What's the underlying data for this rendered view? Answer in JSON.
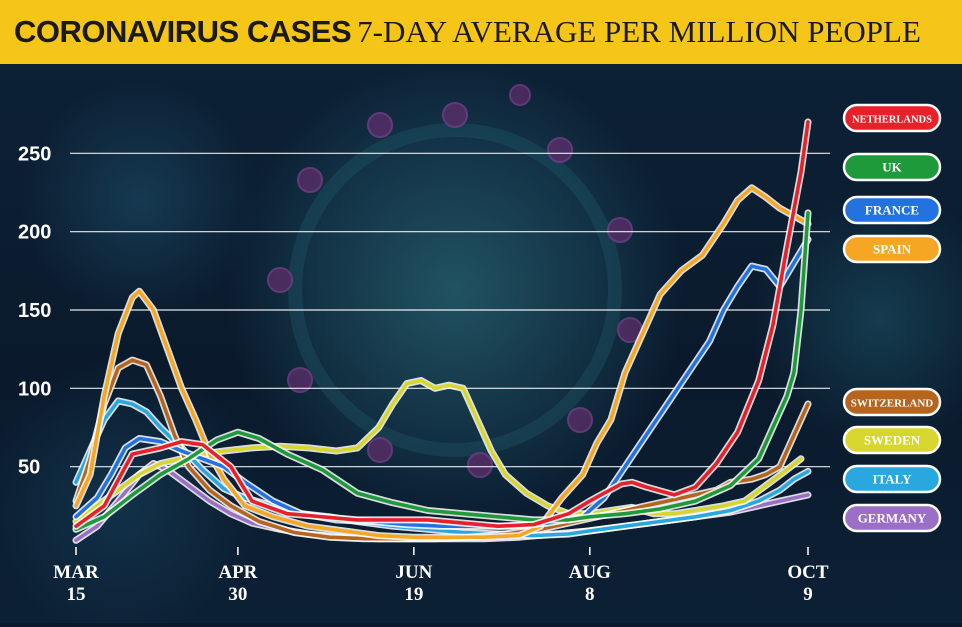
{
  "chart_data": {
    "type": "line",
    "title": "CORONAVIRUS CASES",
    "subtitle": "7-DAY AVERAGE PER MILLION PEOPLE",
    "ylim": [
      0,
      270
    ],
    "yticks": [
      50,
      100,
      150,
      200,
      250
    ],
    "xlim": [
      0,
      208
    ],
    "xticks": [
      {
        "x": 0,
        "line1": "MAR",
        "line2": "15"
      },
      {
        "x": 46,
        "line1": "APR",
        "line2": "30"
      },
      {
        "x": 96,
        "line1": "JUN",
        "line2": "19"
      },
      {
        "x": 146,
        "line1": "AUG",
        "line2": "8"
      },
      {
        "x": 208,
        "line1": "OCT",
        "line2": "9"
      }
    ],
    "x_unit": "days since Mar 15",
    "grid": true,
    "series": [
      {
        "name": "NETHERLANDS",
        "color": "#e8202a",
        "points": [
          [
            0,
            12
          ],
          [
            8,
            25
          ],
          [
            16,
            58
          ],
          [
            24,
            62
          ],
          [
            30,
            66
          ],
          [
            36,
            64
          ],
          [
            44,
            50
          ],
          [
            50,
            28
          ],
          [
            60,
            20
          ],
          [
            70,
            18
          ],
          [
            80,
            16
          ],
          [
            90,
            16
          ],
          [
            100,
            16
          ],
          [
            110,
            14
          ],
          [
            120,
            12
          ],
          [
            130,
            13
          ],
          [
            140,
            20
          ],
          [
            146,
            28
          ],
          [
            150,
            33
          ],
          [
            155,
            39
          ],
          [
            158,
            40
          ],
          [
            162,
            37
          ],
          [
            170,
            32
          ],
          [
            176,
            37
          ],
          [
            182,
            52
          ],
          [
            188,
            72
          ],
          [
            194,
            105
          ],
          [
            198,
            140
          ],
          [
            202,
            190
          ],
          [
            206,
            238
          ],
          [
            208,
            270
          ]
        ]
      },
      {
        "name": "UK",
        "color": "#1e9a3a",
        "points": [
          [
            0,
            10
          ],
          [
            8,
            18
          ],
          [
            16,
            32
          ],
          [
            24,
            45
          ],
          [
            32,
            55
          ],
          [
            40,
            67
          ],
          [
            46,
            72
          ],
          [
            52,
            68
          ],
          [
            60,
            58
          ],
          [
            70,
            48
          ],
          [
            80,
            33
          ],
          [
            90,
            27
          ],
          [
            100,
            22
          ],
          [
            110,
            20
          ],
          [
            120,
            18
          ],
          [
            130,
            16
          ],
          [
            140,
            16
          ],
          [
            146,
            18
          ],
          [
            156,
            20
          ],
          [
            166,
            23
          ],
          [
            176,
            28
          ],
          [
            186,
            38
          ],
          [
            194,
            55
          ],
          [
            198,
            75
          ],
          [
            202,
            95
          ],
          [
            204,
            110
          ],
          [
            206,
            150
          ],
          [
            208,
            212
          ]
        ]
      },
      {
        "name": "FRANCE",
        "color": "#2273e0",
        "points": [
          [
            0,
            18
          ],
          [
            6,
            30
          ],
          [
            10,
            45
          ],
          [
            14,
            62
          ],
          [
            18,
            68
          ],
          [
            24,
            66
          ],
          [
            30,
            60
          ],
          [
            36,
            55
          ],
          [
            42,
            50
          ],
          [
            48,
            40
          ],
          [
            56,
            28
          ],
          [
            64,
            20
          ],
          [
            74,
            16
          ],
          [
            84,
            15
          ],
          [
            94,
            13
          ],
          [
            104,
            12
          ],
          [
            114,
            12
          ],
          [
            124,
            12
          ],
          [
            134,
            14
          ],
          [
            144,
            18
          ],
          [
            150,
            30
          ],
          [
            156,
            50
          ],
          [
            162,
            70
          ],
          [
            168,
            90
          ],
          [
            174,
            110
          ],
          [
            180,
            130
          ],
          [
            184,
            150
          ],
          [
            188,
            165
          ],
          [
            192,
            178
          ],
          [
            196,
            176
          ],
          [
            200,
            165
          ],
          [
            204,
            180
          ],
          [
            208,
            195
          ]
        ]
      },
      {
        "name": "SPAIN",
        "color": "#f5a623",
        "points": [
          [
            0,
            25
          ],
          [
            4,
            45
          ],
          [
            8,
            95
          ],
          [
            12,
            135
          ],
          [
            16,
            158
          ],
          [
            18,
            162
          ],
          [
            22,
            150
          ],
          [
            26,
            125
          ],
          [
            30,
            100
          ],
          [
            34,
            80
          ],
          [
            38,
            58
          ],
          [
            42,
            42
          ],
          [
            48,
            25
          ],
          [
            56,
            18
          ],
          [
            66,
            12
          ],
          [
            76,
            9
          ],
          [
            86,
            6
          ],
          [
            96,
            5
          ],
          [
            106,
            5
          ],
          [
            116,
            5
          ],
          [
            126,
            6
          ],
          [
            132,
            12
          ],
          [
            138,
            30
          ],
          [
            144,
            45
          ],
          [
            148,
            65
          ],
          [
            152,
            80
          ],
          [
            156,
            110
          ],
          [
            160,
            130
          ],
          [
            166,
            160
          ],
          [
            172,
            175
          ],
          [
            178,
            185
          ],
          [
            184,
            205
          ],
          [
            188,
            220
          ],
          [
            192,
            228
          ],
          [
            196,
            222
          ],
          [
            200,
            215
          ],
          [
            204,
            210
          ],
          [
            208,
            205
          ]
        ]
      },
      {
        "name": "SWITZERLAND",
        "color": "#b5651d",
        "points": [
          [
            0,
            28
          ],
          [
            4,
            55
          ],
          [
            8,
            90
          ],
          [
            12,
            113
          ],
          [
            16,
            118
          ],
          [
            20,
            115
          ],
          [
            24,
            95
          ],
          [
            28,
            70
          ],
          [
            32,
            50
          ],
          [
            38,
            35
          ],
          [
            44,
            25
          ],
          [
            52,
            15
          ],
          [
            62,
            8
          ],
          [
            72,
            5
          ],
          [
            82,
            4
          ],
          [
            92,
            4
          ],
          [
            102,
            4
          ],
          [
            112,
            5
          ],
          [
            122,
            7
          ],
          [
            132,
            10
          ],
          [
            142,
            15
          ],
          [
            152,
            20
          ],
          [
            162,
            25
          ],
          [
            172,
            30
          ],
          [
            182,
            35
          ],
          [
            186,
            40
          ],
          [
            192,
            42
          ],
          [
            196,
            45
          ],
          [
            200,
            50
          ],
          [
            204,
            70
          ],
          [
            208,
            90
          ]
        ]
      },
      {
        "name": "SWEDEN",
        "color": "#d6d62e",
        "points": [
          [
            0,
            15
          ],
          [
            6,
            25
          ],
          [
            12,
            35
          ],
          [
            18,
            45
          ],
          [
            24,
            52
          ],
          [
            30,
            55
          ],
          [
            36,
            58
          ],
          [
            42,
            60
          ],
          [
            50,
            62
          ],
          [
            58,
            63
          ],
          [
            66,
            62
          ],
          [
            74,
            60
          ],
          [
            80,
            62
          ],
          [
            86,
            75
          ],
          [
            90,
            90
          ],
          [
            94,
            103
          ],
          [
            98,
            105
          ],
          [
            102,
            100
          ],
          [
            106,
            102
          ],
          [
            110,
            100
          ],
          [
            114,
            80
          ],
          [
            118,
            60
          ],
          [
            122,
            45
          ],
          [
            128,
            33
          ],
          [
            134,
            25
          ],
          [
            140,
            20
          ],
          [
            146,
            20
          ],
          [
            152,
            22
          ],
          [
            158,
            24
          ],
          [
            164,
            20
          ],
          [
            170,
            20
          ],
          [
            176,
            22
          ],
          [
            184,
            25
          ],
          [
            190,
            28
          ],
          [
            196,
            38
          ],
          [
            202,
            48
          ],
          [
            206,
            55
          ]
        ]
      },
      {
        "name": "ITALY",
        "color": "#29a8e0",
        "points": [
          [
            0,
            40
          ],
          [
            4,
            60
          ],
          [
            8,
            80
          ],
          [
            12,
            92
          ],
          [
            16,
            90
          ],
          [
            20,
            85
          ],
          [
            24,
            75
          ],
          [
            30,
            62
          ],
          [
            36,
            48
          ],
          [
            42,
            36
          ],
          [
            48,
            30
          ],
          [
            56,
            25
          ],
          [
            64,
            20
          ],
          [
            72,
            18
          ],
          [
            80,
            15
          ],
          [
            90,
            12
          ],
          [
            100,
            10
          ],
          [
            110,
            8
          ],
          [
            120,
            7
          ],
          [
            130,
            6
          ],
          [
            140,
            7
          ],
          [
            146,
            9
          ],
          [
            156,
            12
          ],
          [
            166,
            15
          ],
          [
            176,
            18
          ],
          [
            186,
            22
          ],
          [
            194,
            28
          ],
          [
            200,
            35
          ],
          [
            204,
            42
          ],
          [
            208,
            47
          ]
        ]
      },
      {
        "name": "GERMANY",
        "color": "#9b6fc5",
        "points": [
          [
            0,
            3
          ],
          [
            6,
            12
          ],
          [
            12,
            28
          ],
          [
            18,
            45
          ],
          [
            22,
            52
          ],
          [
            26,
            48
          ],
          [
            32,
            38
          ],
          [
            38,
            28
          ],
          [
            44,
            20
          ],
          [
            50,
            14
          ],
          [
            58,
            10
          ],
          [
            66,
            7
          ],
          [
            76,
            5
          ],
          [
            86,
            4
          ],
          [
            96,
            4
          ],
          [
            106,
            4
          ],
          [
            116,
            4
          ],
          [
            126,
            5
          ],
          [
            136,
            7
          ],
          [
            146,
            9
          ],
          [
            156,
            12
          ],
          [
            166,
            15
          ],
          [
            176,
            18
          ],
          [
            186,
            21
          ],
          [
            194,
            25
          ],
          [
            200,
            28
          ],
          [
            204,
            30
          ],
          [
            208,
            32
          ]
        ]
      }
    ]
  }
}
